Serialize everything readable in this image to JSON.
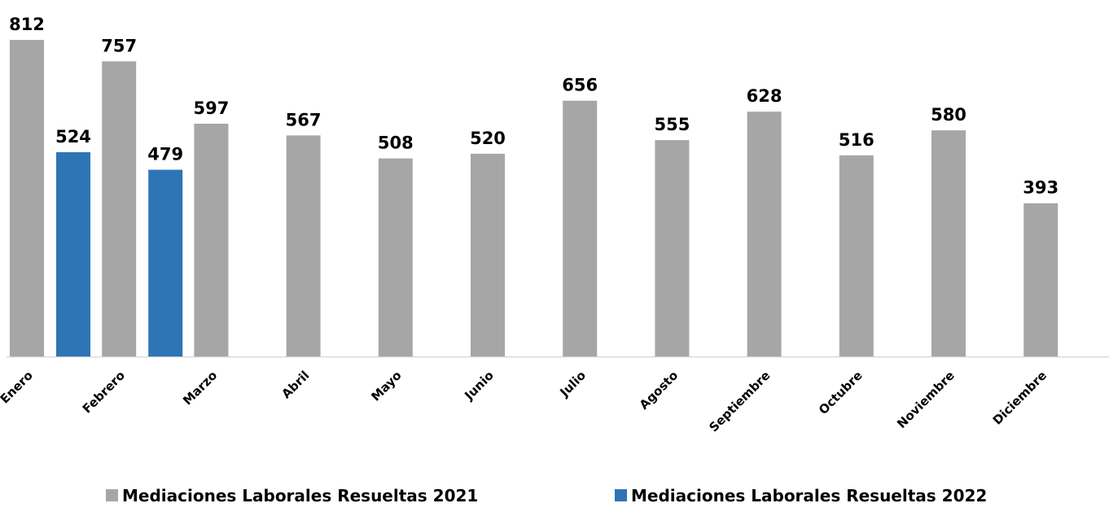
{
  "chart_data": {
    "type": "bar",
    "categories": [
      "Enero",
      "Febrero",
      "Marzo",
      "Abril",
      "Mayo",
      "Junio",
      "Julio",
      "Agosto",
      "Septiembre",
      "Octubre",
      "Noviembre",
      "Diciembre"
    ],
    "series": [
      {
        "name": "Mediaciones Laborales Resueltas 2021",
        "color": "#a6a6a6",
        "values": [
          812,
          757,
          597,
          567,
          508,
          520,
          656,
          555,
          628,
          516,
          580,
          393
        ]
      },
      {
        "name": "Mediaciones Laborales Resueltas 2022",
        "color": "#2e75b6",
        "values": [
          524,
          479,
          null,
          null,
          null,
          null,
          null,
          null,
          null,
          null,
          null,
          null
        ]
      }
    ],
    "legend": "bottom"
  }
}
